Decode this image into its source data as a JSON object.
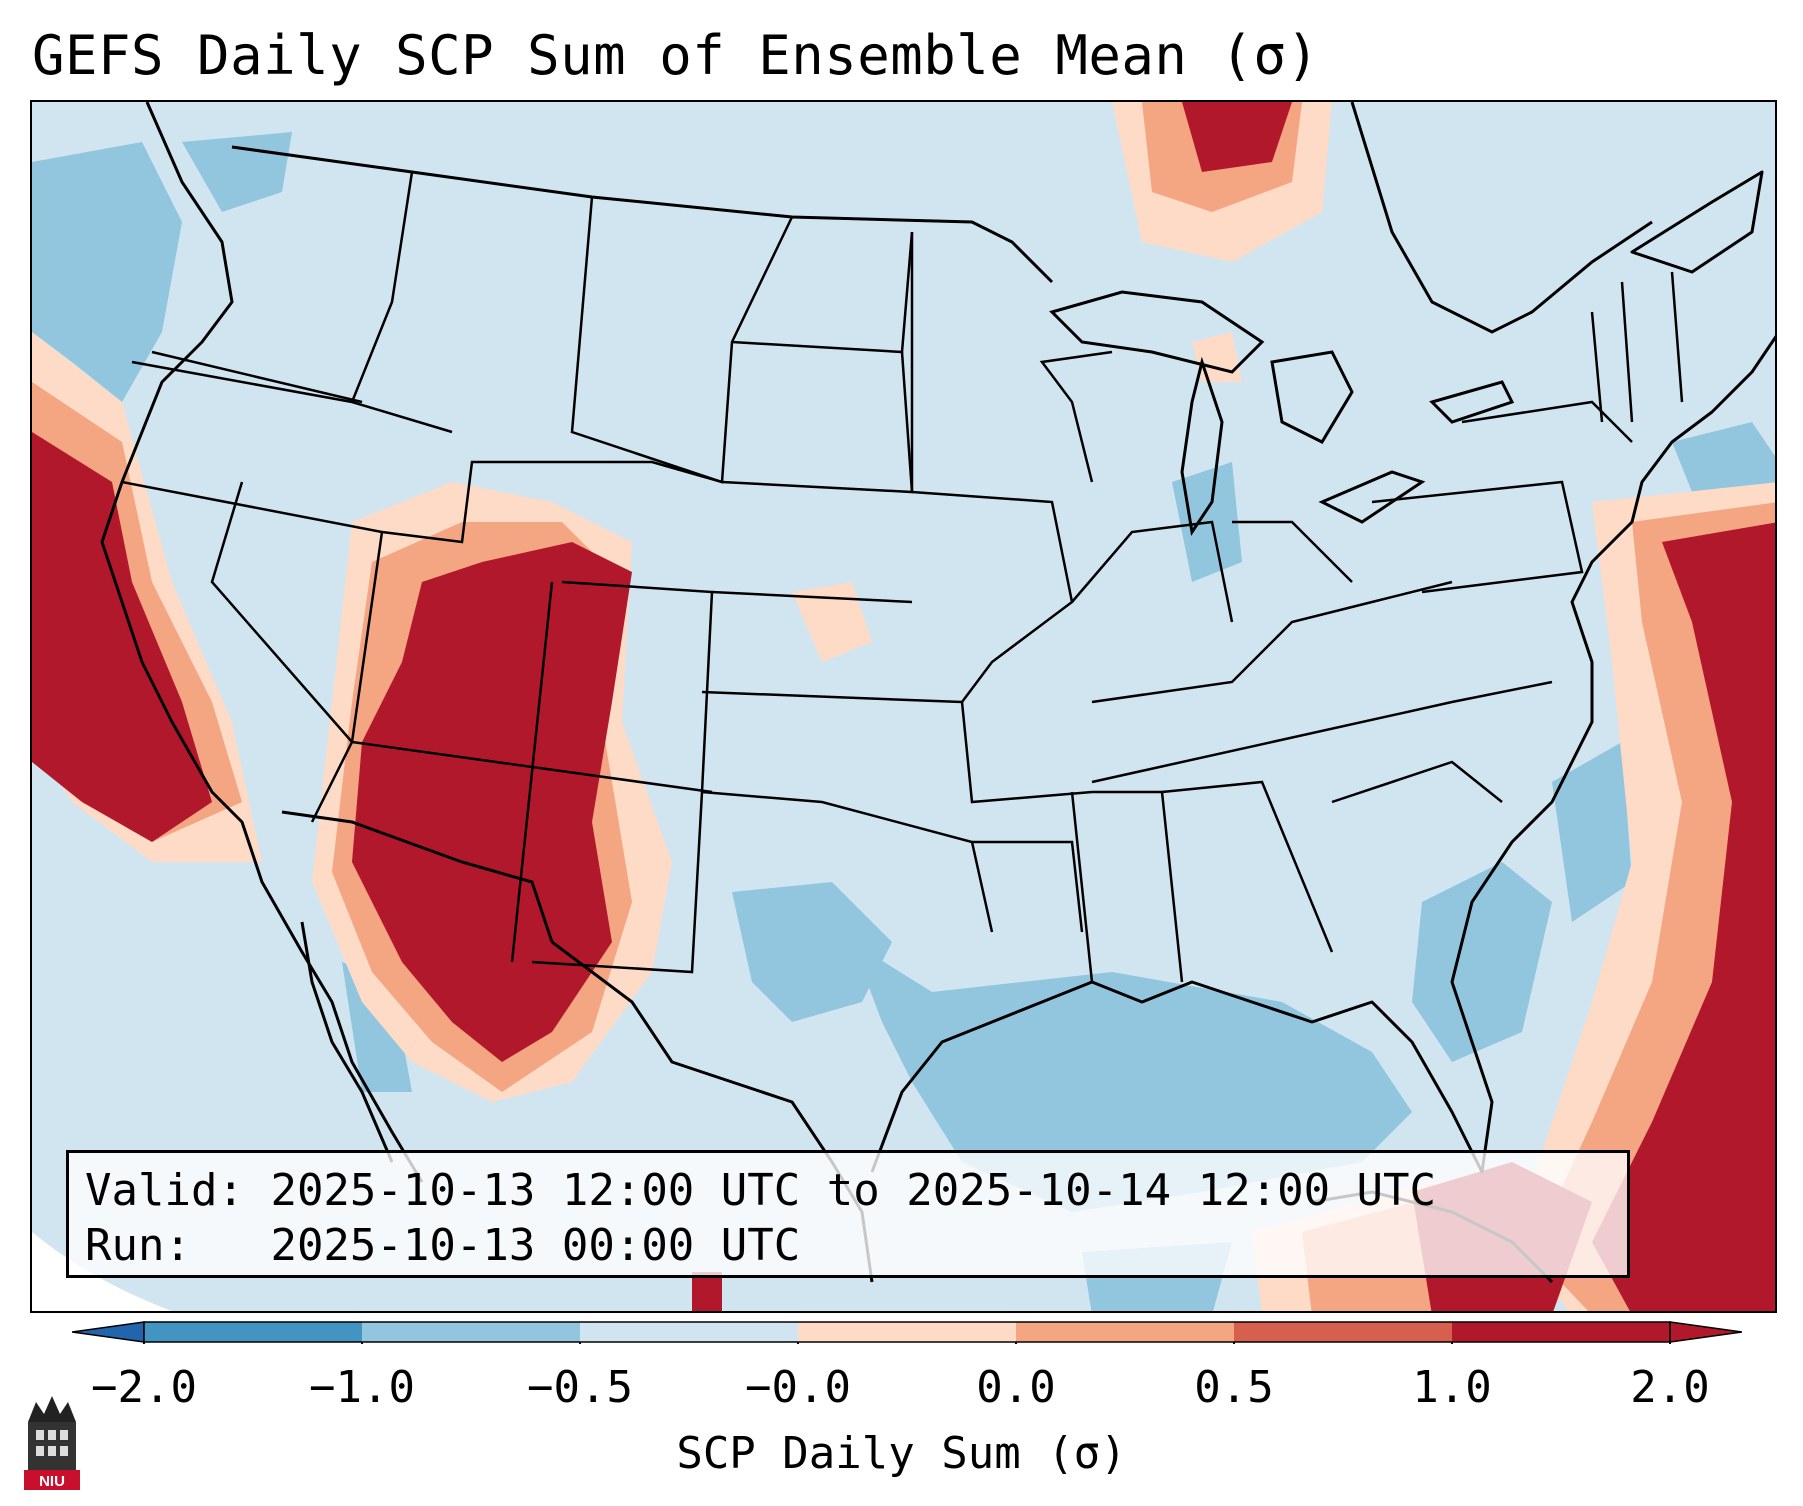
{
  "title": "GEFS Daily SCP Sum of Ensemble Mean (σ)",
  "map": {
    "region": "Continental United States and surroundings",
    "variable": "Supercell Composite Parameter daily sum anomaly",
    "high_anomaly_areas": [
      "California coast",
      "Utah",
      "Colorado",
      "Arizona",
      "New Mexico",
      "Northern Mexico",
      "Western Atlantic",
      "Bahamas / Cuba",
      "Nebraska (weak)",
      "Lake Superior (weak)",
      "Southern Canada (weak)"
    ],
    "low_anomaly_areas": [
      "Gulf of Mexico",
      "Texas",
      "Pacific Northwest offshore",
      "Southeast Atlantic coast"
    ]
  },
  "info": {
    "valid_label": "Valid:",
    "valid_value": "2025-10-13 12:00 UTC to 2025-10-14 12:00 UTC",
    "run_label": "Run:",
    "run_value": "2025-10-13 00:00 UTC"
  },
  "colorbar": {
    "label": "SCP Daily Sum (σ)",
    "ticks": [
      "−2.0",
      "−1.0",
      "−0.5",
      "−0.0",
      "0.0",
      "0.5",
      "1.0",
      "2.0"
    ],
    "colors": [
      "#4393c3",
      "#92c5de",
      "#d1e5f0",
      "#fddbc7",
      "#f4a582",
      "#d6604d",
      "#b2182b"
    ],
    "extend_low_color": "#2166ac",
    "extend_high_color": "#b2182b"
  },
  "logo": {
    "text": "NIU",
    "color": "#c8102e"
  }
}
